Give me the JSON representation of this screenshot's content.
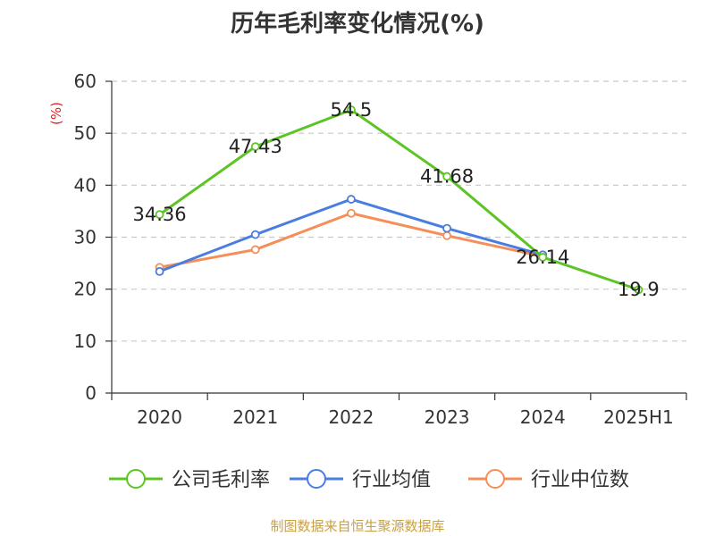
{
  "title": "历年毛利率变化情况(%)",
  "source": "制图数据来自恒生聚源数据库",
  "chart_data": {
    "type": "line",
    "title": "历年毛利率变化情况(%)",
    "ylabel": "(%)",
    "xlabel": "",
    "categories": [
      "2020",
      "2021",
      "2022",
      "2023",
      "2024",
      "2025H1"
    ],
    "ylim": [
      0,
      60
    ],
    "yticks": [
      "0",
      "10",
      "20",
      "30",
      "40",
      "50",
      "60"
    ],
    "grid": "horizontal dashed",
    "legend": "bottom",
    "series": [
      {
        "name": "公司毛利率",
        "color": "#5cc424",
        "values": [
          34.36,
          47.43,
          54.5,
          41.68,
          26.14,
          19.9
        ],
        "labels": [
          "34.36",
          "47.43",
          "54.5",
          "41.68",
          "26.14",
          "19.9"
        ]
      },
      {
        "name": "行业均值",
        "color": "#4a7de0",
        "values": [
          23.4,
          30.5,
          37.3,
          31.7,
          26.6,
          null
        ]
      },
      {
        "name": "行业中位数",
        "color": "#f58f5a",
        "values": [
          24.2,
          27.6,
          34.6,
          30.3,
          26.3,
          null
        ]
      }
    ]
  }
}
